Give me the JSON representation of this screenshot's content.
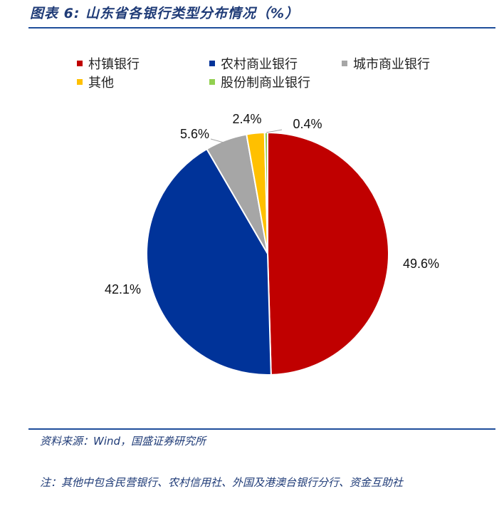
{
  "figure": {
    "title": "图表 6:  山东省各银行类型分布情况（%）",
    "source": "资料来源：Wind，国盛证券研究所",
    "note": "注：其他中包含民营银行、农村信用社、外国及港澳台银行分行、资金互助社"
  },
  "chart_data": {
    "type": "pie",
    "categories": [
      "村镇银行",
      "农村商业银行",
      "城市商业银行",
      "其他",
      "股份制商业银行"
    ],
    "values": [
      49.6,
      42.1,
      5.6,
      2.4,
      0.4
    ],
    "data_labels": [
      "49.6%",
      "42.1%",
      "5.6%",
      "2.4%",
      "0.4%"
    ],
    "colors": [
      "#c00000",
      "#003399",
      "#a6a6a6",
      "#ffc000",
      "#92d050"
    ],
    "legend_position": "top",
    "start_angle": "12 o'clock",
    "direction": "clockwise"
  }
}
